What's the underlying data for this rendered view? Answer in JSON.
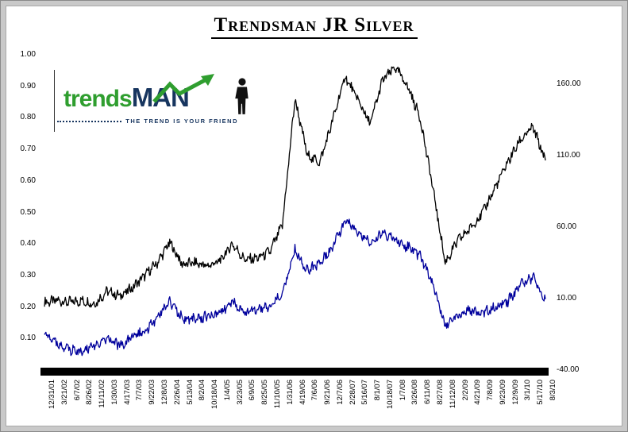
{
  "logo": {
    "brand_green": "trends",
    "brand_navy": "MAN",
    "tagline": "THE TREND IS YOUR FRIEND",
    "colors": {
      "green": "#2f9e2f",
      "navy": "#17355f"
    }
  },
  "chart_data": {
    "type": "line",
    "title": "Trendsman JR Silver",
    "grid": false,
    "legend": "none",
    "x_tick_labels": [
      "12/31/01",
      "3/21/02",
      "6/7/02",
      "8/26/02",
      "11/11/02",
      "1/30/03",
      "4/17/03",
      "7/7/03",
      "9/22/03",
      "12/8/03",
      "2/26/04",
      "5/13/04",
      "8/2/04",
      "10/18/04",
      "1/4/05",
      "3/23/05",
      "6/9/05",
      "8/25/05",
      "11/10/05",
      "1/31/06",
      "4/19/06",
      "7/6/06",
      "9/21/06",
      "12/7/06",
      "2/28/07",
      "5/16/07",
      "8/1/07",
      "10/18/07",
      "1/7/08",
      "3/26/08",
      "6/11/08",
      "8/27/08",
      "11/12/08",
      "2/2/09",
      "4/21/09",
      "7/8/09",
      "9/23/09",
      "12/9/09",
      "3/1/10",
      "5/17/10",
      "8/3/10"
    ],
    "left_axis": {
      "ticks": [
        "1.00",
        "0.90",
        "0.80",
        "0.70",
        "0.60",
        "0.50",
        "0.40",
        "0.30",
        "0.20",
        "0.10"
      ],
      "range": [
        0,
        1
      ]
    },
    "right_axis": {
      "ticks": [
        "160.00",
        "110.00",
        "60.00",
        "10.00",
        "-40.00"
      ],
      "range": [
        -40,
        180
      ]
    },
    "series": [
      {
        "name": "black-line",
        "color": "#000000",
        "axis": "left",
        "values": [
          0.215,
          0.22,
          0.215,
          0.22,
          0.21,
          0.25,
          0.235,
          0.26,
          0.3,
          0.34,
          0.405,
          0.335,
          0.34,
          0.33,
          0.345,
          0.4,
          0.35,
          0.355,
          0.375,
          0.46,
          0.86,
          0.68,
          0.66,
          0.79,
          0.93,
          0.86,
          0.78,
          0.92,
          0.96,
          0.9,
          0.8,
          0.58,
          0.34,
          0.41,
          0.45,
          0.5,
          0.58,
          0.66,
          0.73,
          0.77,
          0.665
        ]
      },
      {
        "name": "blue-line",
        "color": "#00009c",
        "axis": "left",
        "values": [
          0.12,
          0.08,
          0.065,
          0.06,
          0.075,
          0.095,
          0.08,
          0.1,
          0.125,
          0.165,
          0.215,
          0.165,
          0.16,
          0.17,
          0.18,
          0.22,
          0.18,
          0.19,
          0.2,
          0.245,
          0.38,
          0.315,
          0.34,
          0.39,
          0.47,
          0.44,
          0.4,
          0.44,
          0.41,
          0.39,
          0.36,
          0.28,
          0.135,
          0.175,
          0.19,
          0.18,
          0.2,
          0.22,
          0.27,
          0.295,
          0.225
        ]
      }
    ]
  }
}
